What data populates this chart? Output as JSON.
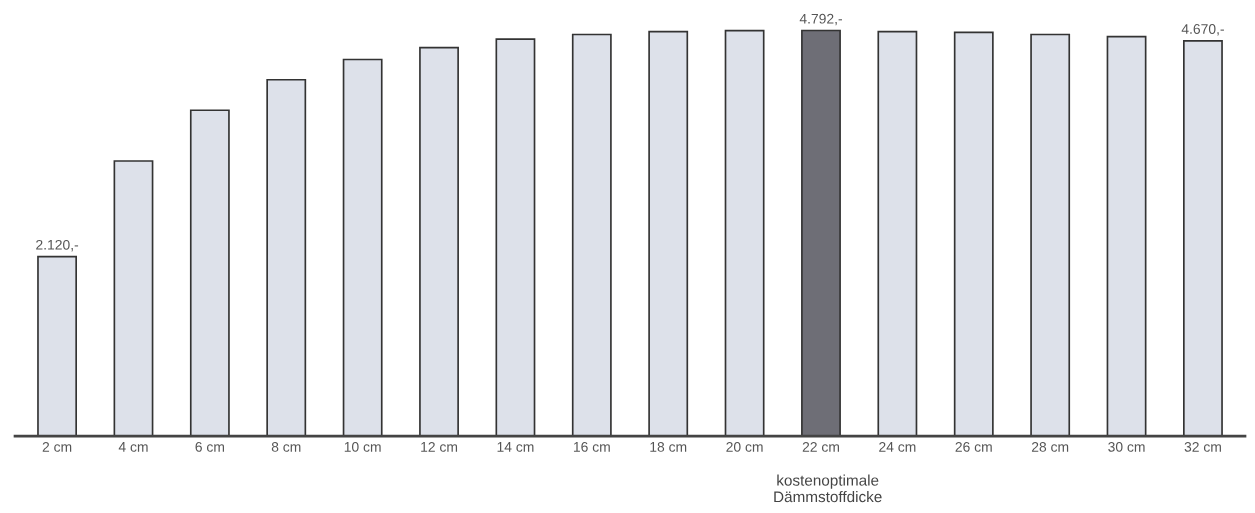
{
  "chart_data": {
    "type": "bar",
    "categories": [
      "2 cm",
      "4 cm",
      "6 cm",
      "8 cm",
      "10 cm",
      "12 cm",
      "14 cm",
      "16 cm",
      "18 cm",
      "20 cm",
      "22 cm",
      "24 cm",
      "26 cm",
      "28 cm",
      "30 cm",
      "32 cm"
    ],
    "values": [
      2120,
      3250,
      3850,
      4210,
      4450,
      4590,
      4690,
      4745,
      4780,
      4790,
      4792,
      4780,
      4770,
      4745,
      4720,
      4670
    ],
    "value_labels": [
      "2.120,-",
      null,
      null,
      null,
      null,
      null,
      null,
      null,
      null,
      null,
      "4.792,-",
      null,
      null,
      null,
      null,
      "4.670,-"
    ],
    "colors": [
      "#dde1ea",
      "#dde1ea",
      "#dde1ea",
      "#dde1ea",
      "#dde1ea",
      "#dde1ea",
      "#dde1ea",
      "#dde1ea",
      "#dde1ea",
      "#dde1ea",
      "#6e6e76",
      "#dde1ea",
      "#dde1ea",
      "#dde1ea",
      "#dde1ea",
      "#dde1ea"
    ],
    "annotations": [
      "kostenoptimale\nDämmstoffdicke"
    ],
    "grid": false,
    "legend": false
  }
}
